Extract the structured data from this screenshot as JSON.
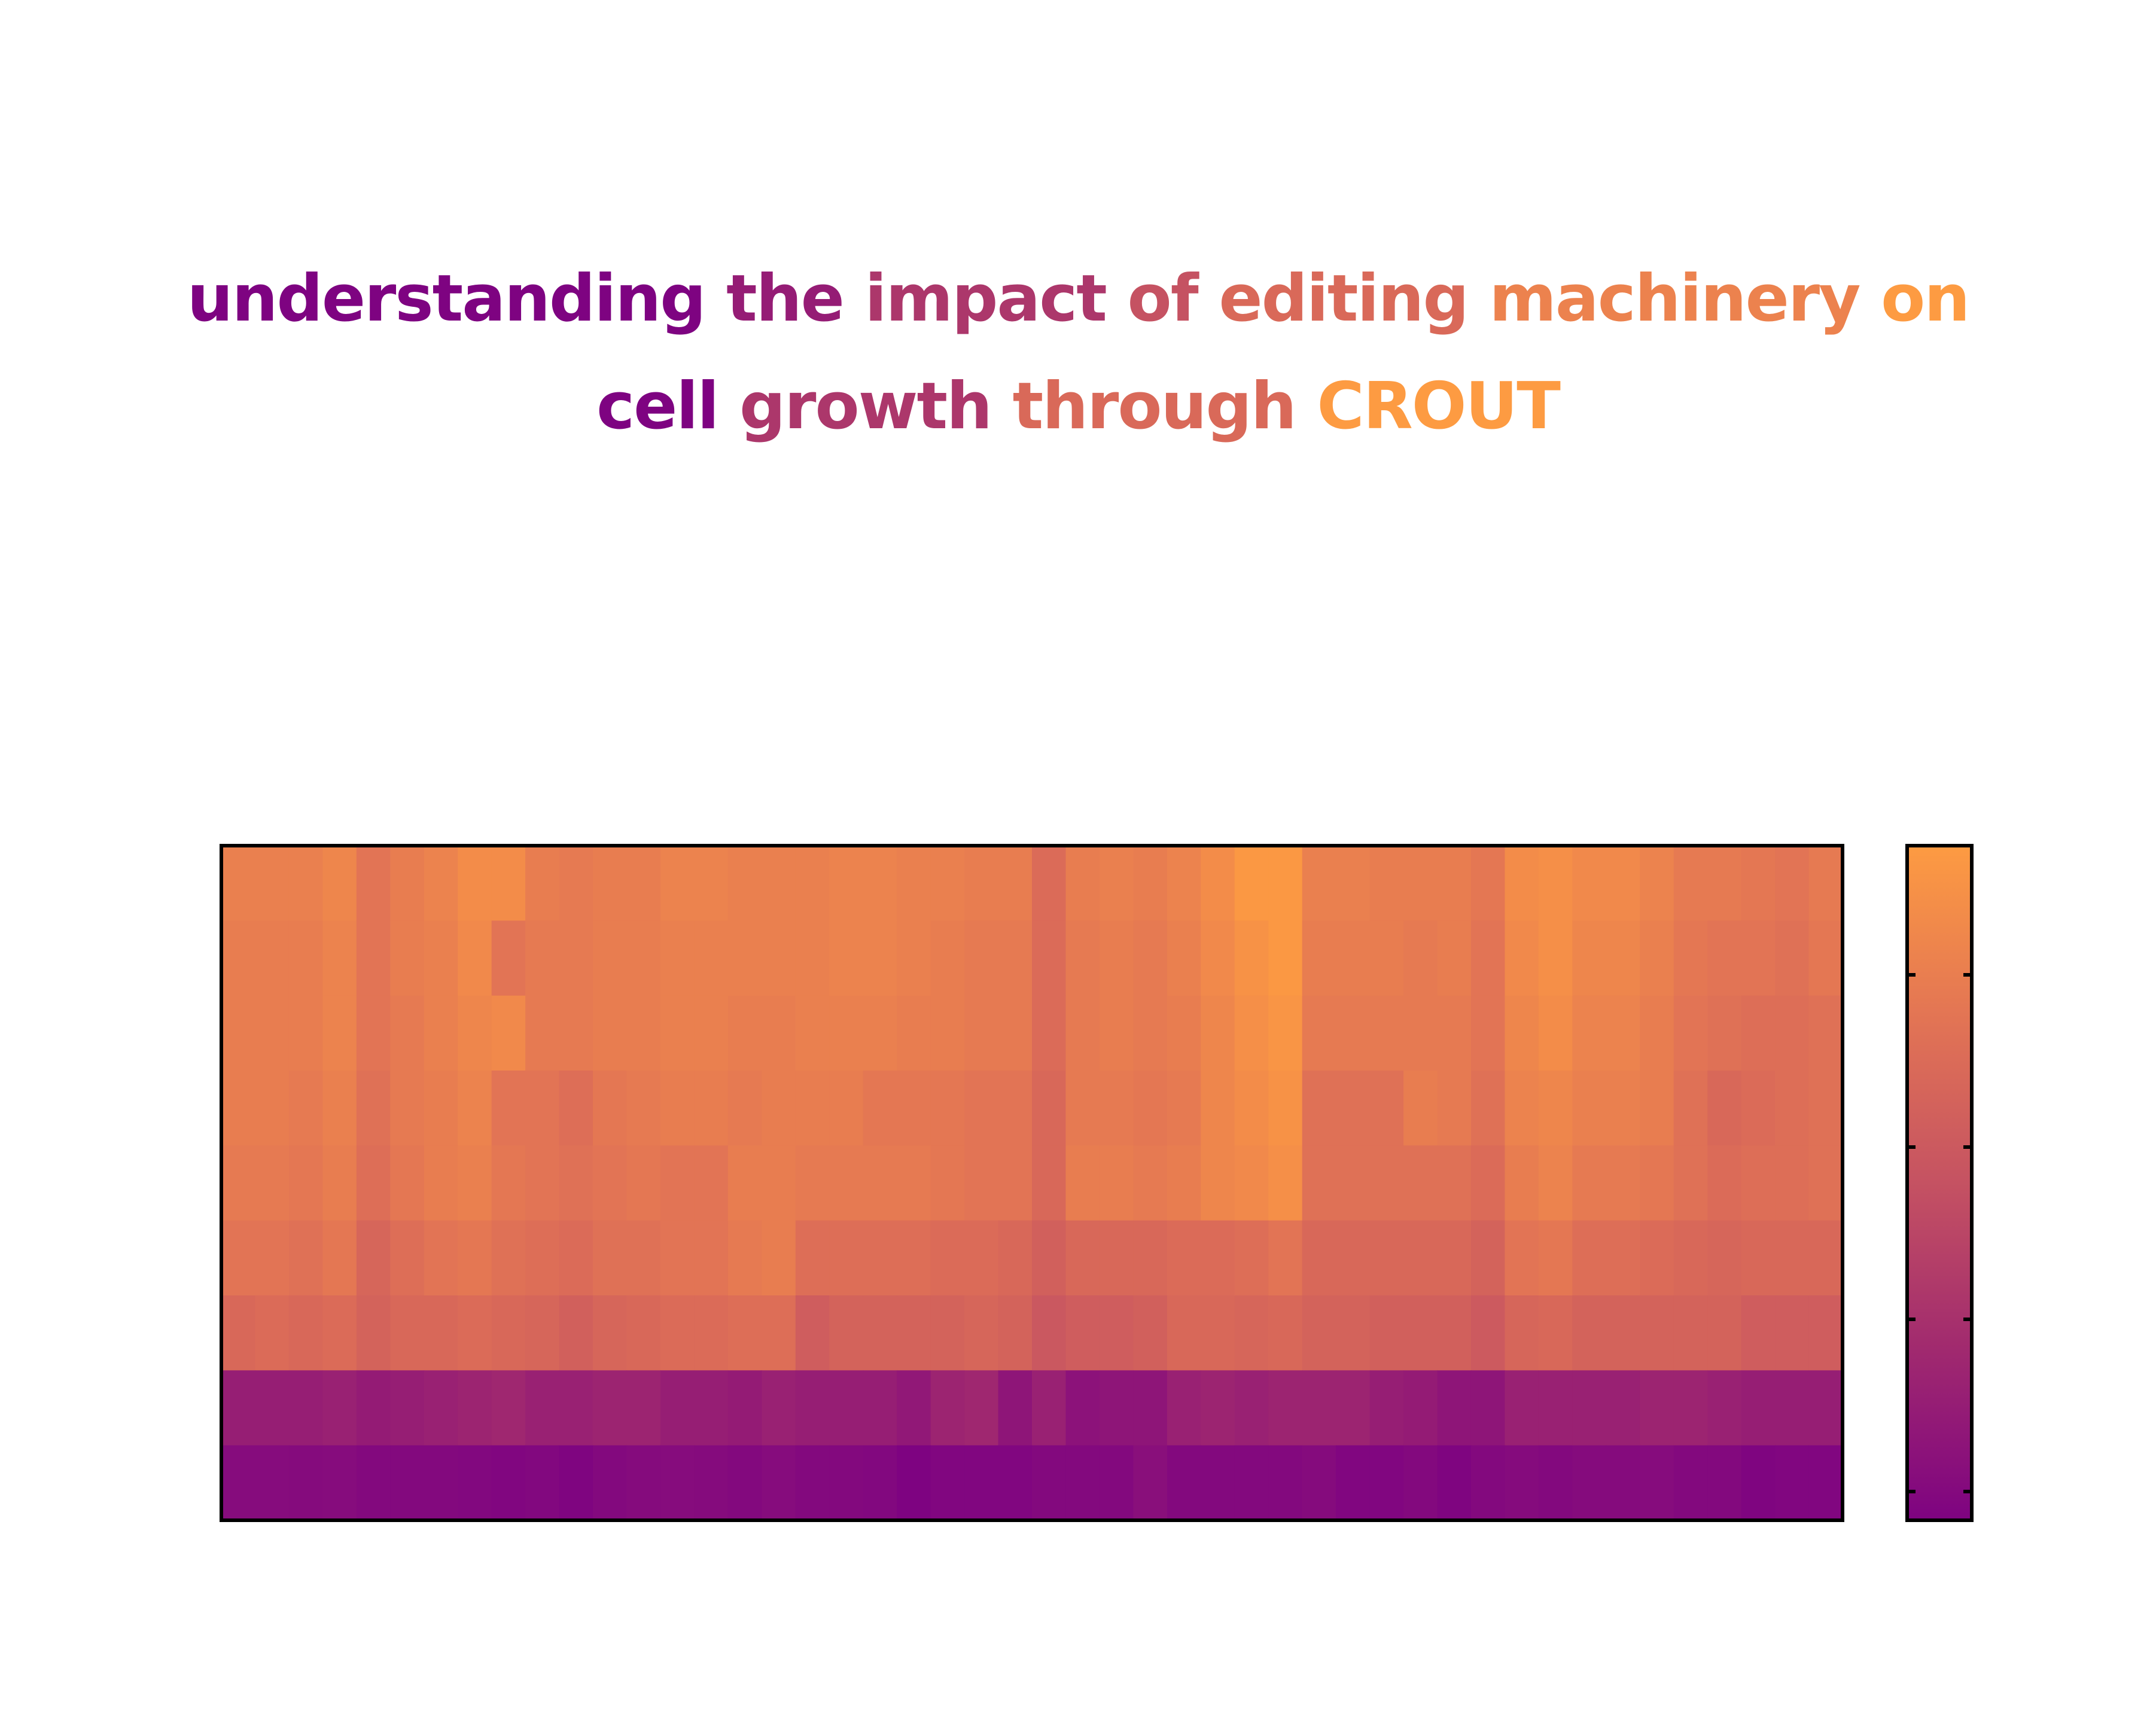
{
  "title_lines": [
    [
      "understanding",
      "the",
      "impact",
      "of",
      "editing",
      "machinery",
      "on"
    ],
    [
      "cell",
      "growth",
      "through",
      "CROUT"
    ]
  ],
  "colors": {
    "background": "#ffffff",
    "frame": "#000000",
    "colormap": [
      "#7e0381",
      "#a0296f",
      "#c55262",
      "#e37554",
      "#fd9b42"
    ]
  },
  "chart_data": {
    "type": "heatmap",
    "title": "understanding the impact of editing machinery on cell growth through CROUT",
    "xlabel": "",
    "ylabel": "",
    "colormap": "plasma-like (purple to orange)",
    "vmin": 0,
    "vmax": 1,
    "colorbar": {
      "position": "right",
      "tick_count": 4,
      "tick_labels": []
    },
    "n_rows": 9,
    "n_cols": 48,
    "values": [
      [
        0.82,
        0.82,
        0.82,
        0.86,
        0.74,
        0.8,
        0.84,
        0.9,
        0.9,
        0.8,
        0.78,
        0.8,
        0.8,
        0.84,
        0.84,
        0.82,
        0.82,
        0.82,
        0.84,
        0.84,
        0.82,
        0.82,
        0.8,
        0.8,
        0.68,
        0.8,
        0.82,
        0.8,
        0.84,
        0.9,
        0.98,
        0.98,
        0.82,
        0.82,
        0.8,
        0.8,
        0.8,
        0.76,
        0.9,
        0.92,
        0.88,
        0.88,
        0.84,
        0.78,
        0.78,
        0.76,
        0.74,
        0.78
      ],
      [
        0.8,
        0.8,
        0.8,
        0.84,
        0.74,
        0.8,
        0.82,
        0.88,
        0.74,
        0.78,
        0.78,
        0.8,
        0.8,
        0.82,
        0.82,
        0.82,
        0.82,
        0.82,
        0.84,
        0.84,
        0.82,
        0.8,
        0.78,
        0.78,
        0.68,
        0.78,
        0.8,
        0.78,
        0.82,
        0.88,
        0.94,
        0.98,
        0.8,
        0.8,
        0.8,
        0.78,
        0.8,
        0.74,
        0.88,
        0.92,
        0.86,
        0.86,
        0.82,
        0.76,
        0.74,
        0.74,
        0.72,
        0.76
      ],
      [
        0.8,
        0.8,
        0.8,
        0.84,
        0.74,
        0.78,
        0.82,
        0.86,
        0.88,
        0.78,
        0.78,
        0.8,
        0.8,
        0.82,
        0.82,
        0.8,
        0.8,
        0.82,
        0.82,
        0.82,
        0.8,
        0.8,
        0.78,
        0.78,
        0.68,
        0.78,
        0.8,
        0.78,
        0.8,
        0.86,
        0.92,
        0.96,
        0.78,
        0.78,
        0.78,
        0.78,
        0.78,
        0.74,
        0.86,
        0.9,
        0.84,
        0.84,
        0.8,
        0.74,
        0.72,
        0.7,
        0.7,
        0.72
      ],
      [
        0.8,
        0.8,
        0.78,
        0.82,
        0.72,
        0.78,
        0.8,
        0.84,
        0.74,
        0.74,
        0.7,
        0.76,
        0.78,
        0.8,
        0.8,
        0.78,
        0.8,
        0.8,
        0.8,
        0.76,
        0.76,
        0.76,
        0.74,
        0.74,
        0.66,
        0.78,
        0.78,
        0.76,
        0.78,
        0.86,
        0.9,
        0.94,
        0.72,
        0.72,
        0.72,
        0.8,
        0.78,
        0.72,
        0.84,
        0.86,
        0.82,
        0.82,
        0.8,
        0.72,
        0.66,
        0.68,
        0.7,
        0.72
      ],
      [
        0.78,
        0.78,
        0.76,
        0.8,
        0.7,
        0.76,
        0.8,
        0.82,
        0.76,
        0.74,
        0.72,
        0.74,
        0.76,
        0.74,
        0.74,
        0.8,
        0.8,
        0.78,
        0.78,
        0.78,
        0.78,
        0.76,
        0.74,
        0.74,
        0.66,
        0.8,
        0.8,
        0.78,
        0.8,
        0.86,
        0.88,
        0.92,
        0.72,
        0.72,
        0.72,
        0.72,
        0.72,
        0.68,
        0.8,
        0.84,
        0.78,
        0.78,
        0.76,
        0.72,
        0.68,
        0.7,
        0.7,
        0.72
      ],
      [
        0.74,
        0.74,
        0.72,
        0.76,
        0.64,
        0.7,
        0.74,
        0.76,
        0.72,
        0.7,
        0.68,
        0.72,
        0.72,
        0.74,
        0.74,
        0.78,
        0.8,
        0.7,
        0.7,
        0.7,
        0.7,
        0.68,
        0.68,
        0.66,
        0.6,
        0.66,
        0.66,
        0.66,
        0.68,
        0.68,
        0.7,
        0.74,
        0.66,
        0.66,
        0.66,
        0.66,
        0.66,
        0.62,
        0.74,
        0.76,
        0.7,
        0.7,
        0.68,
        0.66,
        0.64,
        0.66,
        0.66,
        0.66
      ],
      [
        0.66,
        0.68,
        0.66,
        0.68,
        0.62,
        0.66,
        0.66,
        0.68,
        0.66,
        0.64,
        0.6,
        0.64,
        0.66,
        0.68,
        0.68,
        0.7,
        0.7,
        0.58,
        0.62,
        0.62,
        0.62,
        0.62,
        0.64,
        0.62,
        0.54,
        0.58,
        0.58,
        0.6,
        0.66,
        0.66,
        0.64,
        0.66,
        0.62,
        0.62,
        0.6,
        0.6,
        0.6,
        0.56,
        0.64,
        0.66,
        0.62,
        0.62,
        0.62,
        0.62,
        0.62,
        0.58,
        0.58,
        0.58
      ],
      [
        0.18,
        0.18,
        0.18,
        0.2,
        0.16,
        0.18,
        0.2,
        0.22,
        0.24,
        0.2,
        0.2,
        0.22,
        0.22,
        0.18,
        0.18,
        0.16,
        0.2,
        0.18,
        0.18,
        0.18,
        0.14,
        0.22,
        0.24,
        0.12,
        0.2,
        0.1,
        0.12,
        0.12,
        0.2,
        0.22,
        0.2,
        0.22,
        0.22,
        0.22,
        0.18,
        0.16,
        0.12,
        0.12,
        0.2,
        0.2,
        0.2,
        0.2,
        0.22,
        0.22,
        0.2,
        0.18,
        0.18,
        0.18
      ],
      [
        0.06,
        0.06,
        0.05,
        0.06,
        0.04,
        0.04,
        0.04,
        0.03,
        0.02,
        0.03,
        0.01,
        0.04,
        0.05,
        0.06,
        0.05,
        0.04,
        0.06,
        0.04,
        0.04,
        0.03,
        0.0,
        0.02,
        0.02,
        0.02,
        0.04,
        0.04,
        0.04,
        0.08,
        0.04,
        0.04,
        0.04,
        0.04,
        0.05,
        0.02,
        0.02,
        0.04,
        0.01,
        0.04,
        0.05,
        0.04,
        0.05,
        0.05,
        0.06,
        0.04,
        0.04,
        0.01,
        0.02,
        0.02
      ]
    ]
  }
}
